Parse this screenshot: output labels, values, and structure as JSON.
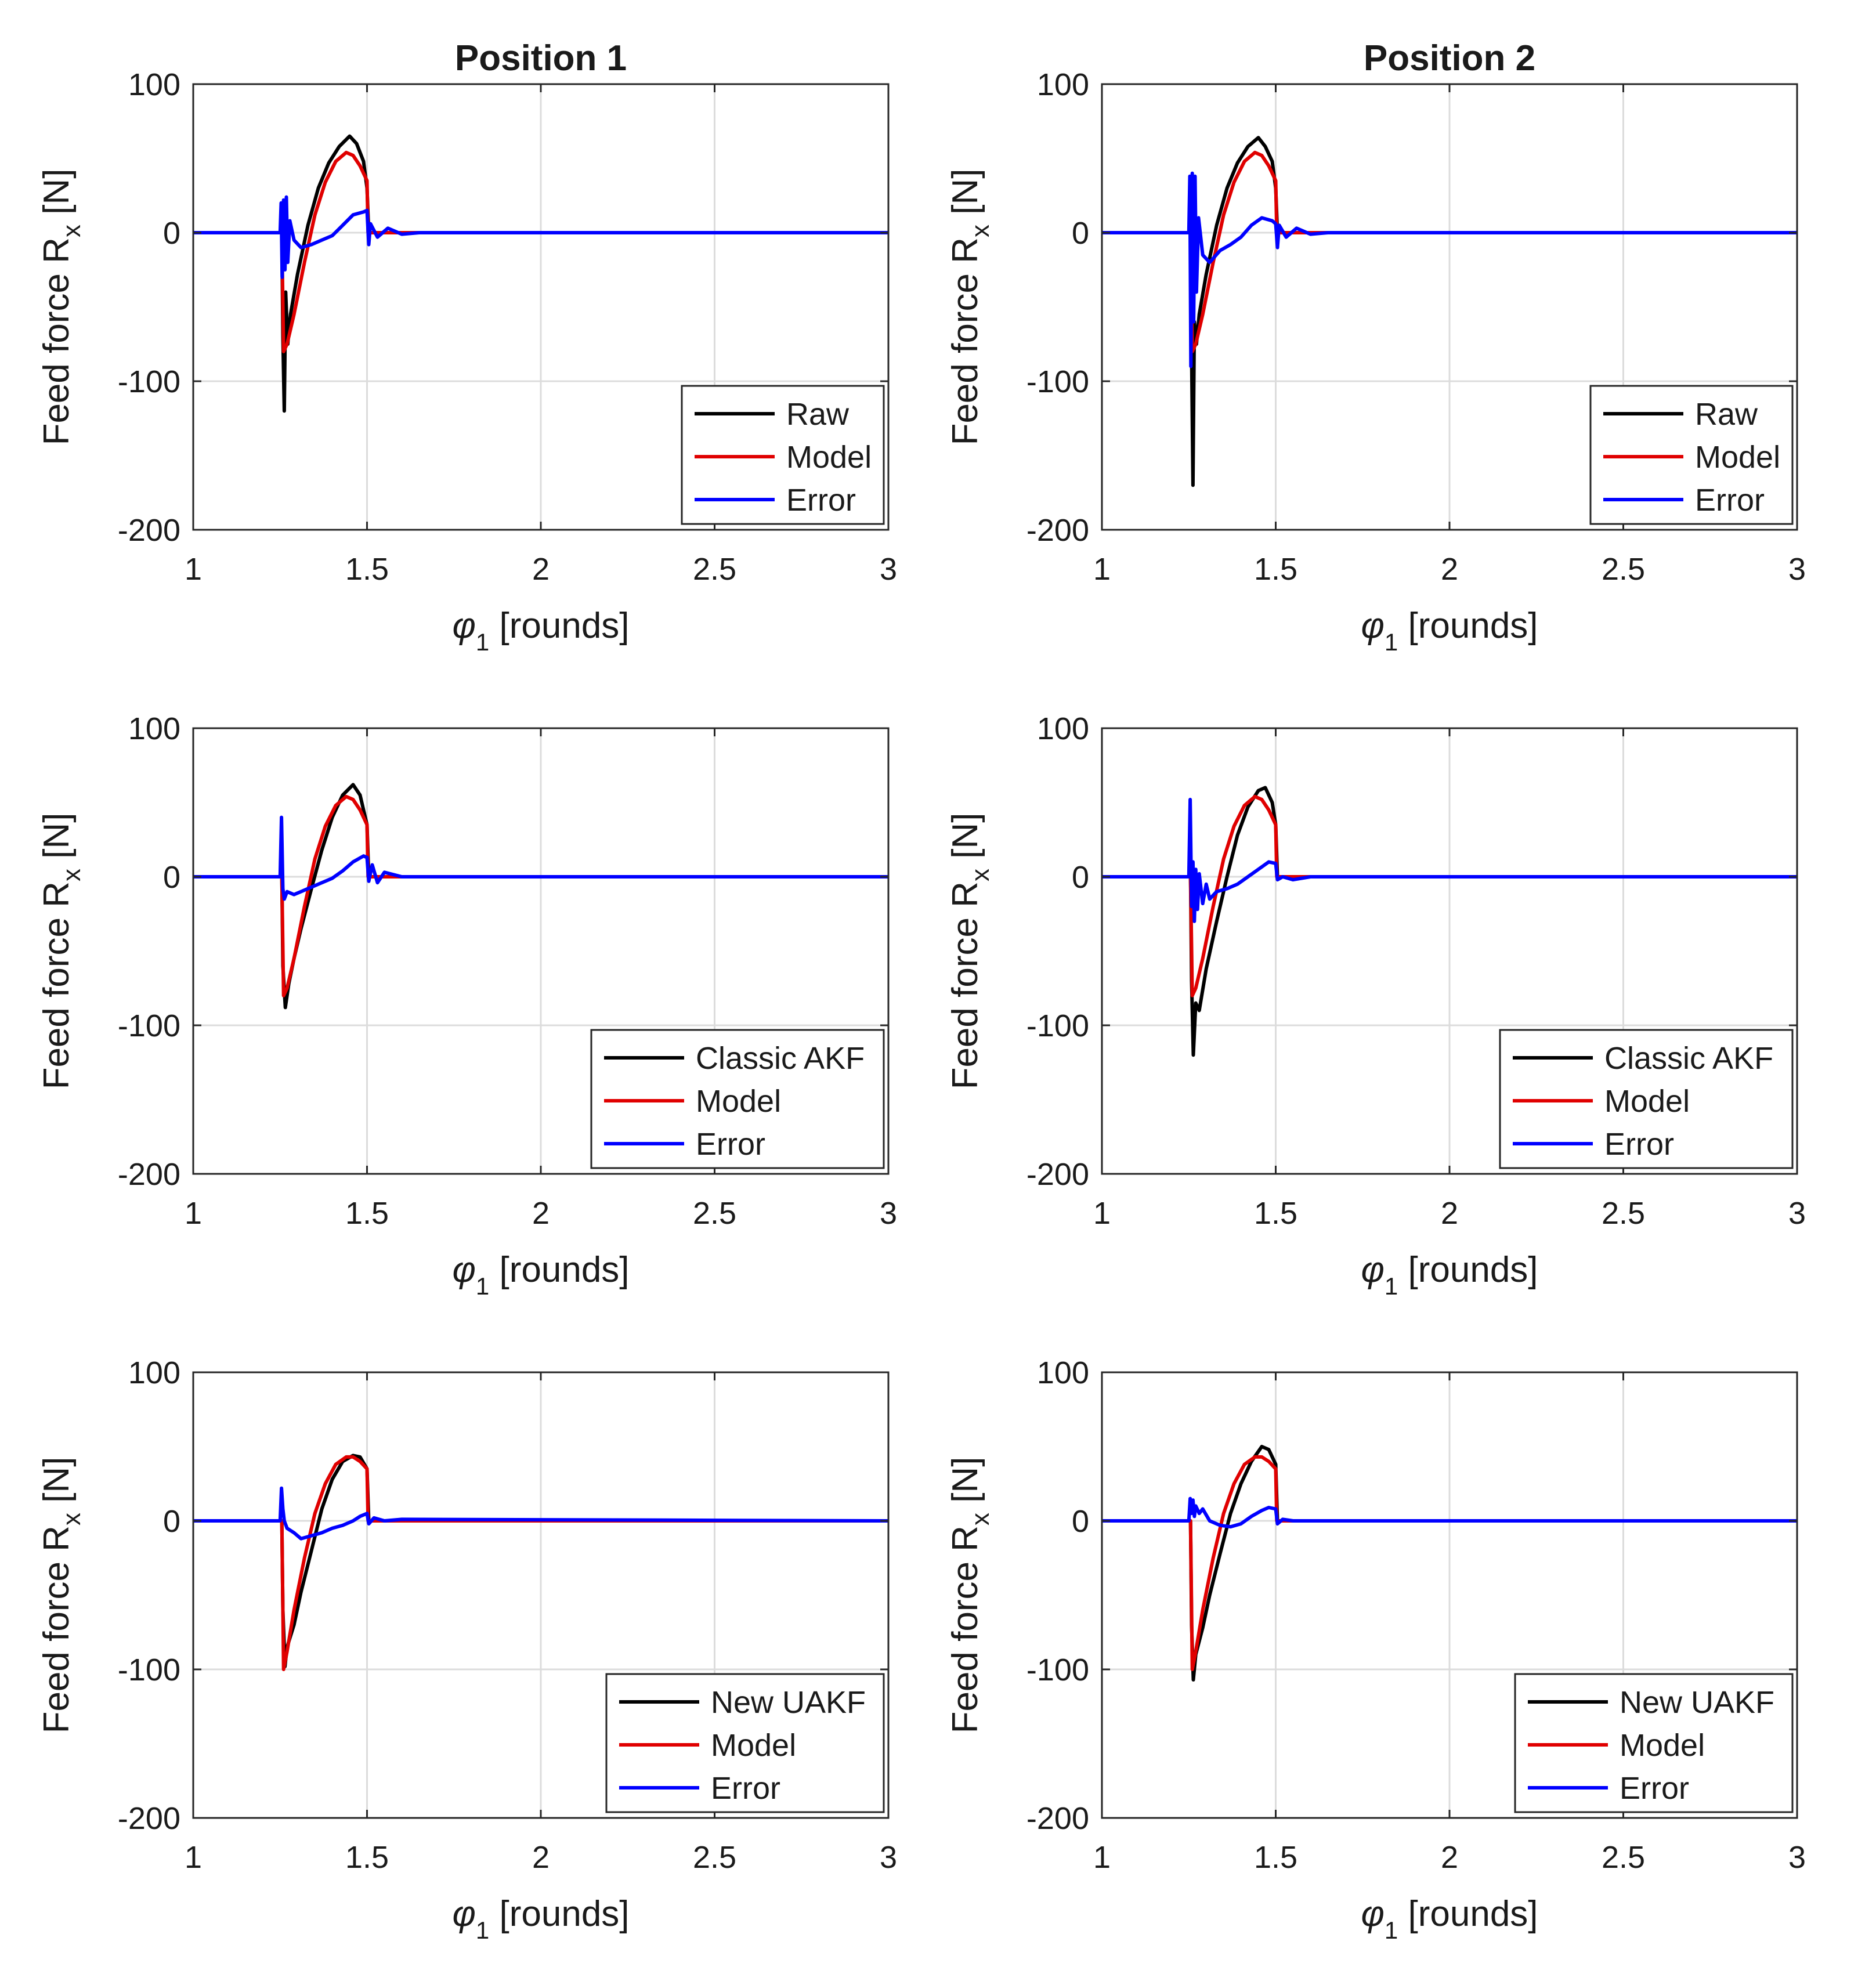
{
  "colors": {
    "black": "#000000",
    "red": "#e00000",
    "blue": "#0000ff",
    "grid": "#dcdcdc"
  },
  "chart_data": [
    {
      "type": "line",
      "column_title": "Position 1",
      "xlabel_symbol": "φ",
      "xlabel_sub": "1",
      "xlabel_rest": " [rounds]",
      "ylabel_main": "Feed force R",
      "ylabel_sub": "x",
      "ylabel_rest": " [N]",
      "xlim": [
        1,
        3
      ],
      "ylim": [
        -200,
        100
      ],
      "xticks": [
        1,
        1.5,
        2,
        2.5,
        3
      ],
      "xtick_labels": [
        "1",
        "1.5",
        "2",
        "2.5",
        "3"
      ],
      "yticks": [
        -200,
        -100,
        0,
        100
      ],
      "ytick_labels": [
        "-200",
        "-100",
        "0",
        "100"
      ],
      "grid": true,
      "legend_loc": "lower-right",
      "series": [
        {
          "name": "Raw",
          "color": "black",
          "x": [
            1,
            1.255,
            1.258,
            1.262,
            1.266,
            1.272,
            1.28,
            1.3,
            1.33,
            1.36,
            1.39,
            1.42,
            1.45,
            1.47,
            1.49,
            1.5,
            1.505,
            1.52,
            3
          ],
          "y": [
            0,
            0,
            -70,
            -120,
            -40,
            -75,
            -55,
            -28,
            5,
            30,
            47,
            58,
            65,
            60,
            48,
            30,
            0,
            0,
            0
          ]
        },
        {
          "name": "Model",
          "color": "red",
          "x": [
            1,
            1.255,
            1.26,
            1.27,
            1.29,
            1.32,
            1.35,
            1.38,
            1.41,
            1.44,
            1.46,
            1.48,
            1.5,
            1.503,
            3
          ],
          "y": [
            0,
            0,
            -80,
            -75,
            -55,
            -20,
            12,
            34,
            48,
            54,
            52,
            45,
            35,
            0,
            0
          ]
        },
        {
          "name": "Error",
          "color": "blue",
          "x": [
            1,
            1.25,
            1.253,
            1.256,
            1.26,
            1.264,
            1.268,
            1.272,
            1.278,
            1.29,
            1.31,
            1.34,
            1.37,
            1.4,
            1.43,
            1.46,
            1.49,
            1.5,
            1.505,
            1.51,
            1.53,
            1.56,
            1.6,
            1.65,
            3
          ],
          "y": [
            0,
            0,
            20,
            -30,
            22,
            -25,
            24,
            -20,
            8,
            -5,
            -10,
            -8,
            -5,
            -2,
            5,
            12,
            14,
            15,
            -8,
            6,
            -3,
            3,
            -1,
            0,
            0
          ]
        }
      ]
    },
    {
      "type": "line",
      "column_title": "Position 2",
      "xlabel_symbol": "φ",
      "xlabel_sub": "1",
      "xlabel_rest": " [rounds]",
      "ylabel_main": "Feed force R",
      "ylabel_sub": "x",
      "ylabel_rest": " [N]",
      "xlim": [
        1,
        3
      ],
      "ylim": [
        -200,
        100
      ],
      "xticks": [
        1,
        1.5,
        2,
        2.5,
        3
      ],
      "xtick_labels": [
        "1",
        "1.5",
        "2",
        "2.5",
        "3"
      ],
      "yticks": [
        -200,
        -100,
        0,
        100
      ],
      "ytick_labels": [
        "-200",
        "-100",
        "0",
        "100"
      ],
      "grid": true,
      "legend_loc": "lower-right",
      "series": [
        {
          "name": "Raw",
          "color": "black",
          "x": [
            1,
            1.255,
            1.258,
            1.262,
            1.266,
            1.272,
            1.28,
            1.3,
            1.33,
            1.36,
            1.39,
            1.42,
            1.45,
            1.47,
            1.49,
            1.5,
            1.505,
            1.52,
            3
          ],
          "y": [
            0,
            0,
            -80,
            -170,
            -60,
            -75,
            -55,
            -28,
            5,
            30,
            47,
            58,
            64,
            58,
            48,
            30,
            0,
            0,
            0
          ]
        },
        {
          "name": "Model",
          "color": "red",
          "x": [
            1,
            1.255,
            1.26,
            1.27,
            1.29,
            1.32,
            1.35,
            1.38,
            1.41,
            1.44,
            1.46,
            1.48,
            1.5,
            1.503,
            3
          ],
          "y": [
            0,
            0,
            -80,
            -75,
            -55,
            -20,
            12,
            34,
            48,
            54,
            52,
            45,
            35,
            0,
            0
          ]
        },
        {
          "name": "Error",
          "color": "blue",
          "x": [
            1,
            1.25,
            1.253,
            1.256,
            1.26,
            1.264,
            1.268,
            1.272,
            1.278,
            1.29,
            1.31,
            1.34,
            1.37,
            1.4,
            1.43,
            1.46,
            1.49,
            1.5,
            1.505,
            1.51,
            1.53,
            1.56,
            1.6,
            1.65,
            3
          ],
          "y": [
            0,
            0,
            38,
            -90,
            40,
            -60,
            38,
            -40,
            10,
            -15,
            -20,
            -12,
            -8,
            -3,
            5,
            10,
            8,
            6,
            -10,
            5,
            -3,
            3,
            -1,
            0,
            0
          ]
        }
      ]
    },
    {
      "type": "line",
      "xlabel_symbol": "φ",
      "xlabel_sub": "1",
      "xlabel_rest": " [rounds]",
      "ylabel_main": "Feed force R",
      "ylabel_sub": "x",
      "ylabel_rest": " [N]",
      "xlim": [
        1,
        3
      ],
      "ylim": [
        -200,
        100
      ],
      "xticks": [
        1,
        1.5,
        2,
        2.5,
        3
      ],
      "xtick_labels": [
        "1",
        "1.5",
        "2",
        "2.5",
        "3"
      ],
      "yticks": [
        -200,
        -100,
        0,
        100
      ],
      "ytick_labels": [
        "-200",
        "-100",
        "0",
        "100"
      ],
      "grid": true,
      "legend_loc": "lower-right",
      "series": [
        {
          "name": "Classic AKF",
          "color": "black",
          "x": [
            1,
            1.255,
            1.258,
            1.265,
            1.275,
            1.29,
            1.31,
            1.34,
            1.37,
            1.4,
            1.43,
            1.46,
            1.48,
            1.5,
            1.505,
            3
          ],
          "y": [
            0,
            0,
            -60,
            -88,
            -72,
            -55,
            -35,
            -8,
            18,
            40,
            55,
            62,
            55,
            35,
            0,
            0
          ]
        },
        {
          "name": "Model",
          "color": "red",
          "x": [
            1,
            1.255,
            1.26,
            1.27,
            1.29,
            1.32,
            1.35,
            1.38,
            1.41,
            1.44,
            1.46,
            1.48,
            1.5,
            1.503,
            3
          ],
          "y": [
            0,
            0,
            -80,
            -75,
            -55,
            -20,
            12,
            34,
            48,
            54,
            52,
            45,
            35,
            0,
            0
          ]
        },
        {
          "name": "Error",
          "color": "blue",
          "x": [
            1,
            1.25,
            1.254,
            1.258,
            1.262,
            1.27,
            1.29,
            1.31,
            1.34,
            1.37,
            1.4,
            1.43,
            1.46,
            1.49,
            1.5,
            1.505,
            1.515,
            1.53,
            1.55,
            1.6,
            3
          ],
          "y": [
            0,
            0,
            40,
            -8,
            -15,
            -10,
            -12,
            -10,
            -7,
            -4,
            -1,
            4,
            10,
            14,
            13,
            -3,
            8,
            -4,
            3,
            0,
            0
          ]
        }
      ]
    },
    {
      "type": "line",
      "xlabel_symbol": "φ",
      "xlabel_sub": "1",
      "xlabel_rest": " [rounds]",
      "ylabel_main": "Feed force R",
      "ylabel_sub": "x",
      "ylabel_rest": " [N]",
      "xlim": [
        1,
        3
      ],
      "ylim": [
        -200,
        100
      ],
      "xticks": [
        1,
        1.5,
        2,
        2.5,
        3
      ],
      "xtick_labels": [
        "1",
        "1.5",
        "2",
        "2.5",
        "3"
      ],
      "yticks": [
        -200,
        -100,
        0,
        100
      ],
      "ytick_labels": [
        "-200",
        "-100",
        "0",
        "100"
      ],
      "grid": true,
      "legend_loc": "lower-right",
      "series": [
        {
          "name": "Classic AKF",
          "color": "black",
          "x": [
            1,
            1.255,
            1.258,
            1.263,
            1.27,
            1.28,
            1.3,
            1.33,
            1.36,
            1.39,
            1.42,
            1.45,
            1.47,
            1.49,
            1.5,
            1.505,
            3
          ],
          "y": [
            0,
            0,
            -70,
            -120,
            -85,
            -90,
            -62,
            -30,
            0,
            28,
            47,
            58,
            60,
            50,
            35,
            0,
            0
          ]
        },
        {
          "name": "Model",
          "color": "red",
          "x": [
            1,
            1.255,
            1.26,
            1.27,
            1.29,
            1.32,
            1.35,
            1.38,
            1.41,
            1.44,
            1.46,
            1.48,
            1.5,
            1.503,
            3
          ],
          "y": [
            0,
            0,
            -80,
            -75,
            -55,
            -20,
            12,
            34,
            48,
            54,
            52,
            45,
            35,
            0,
            0
          ]
        },
        {
          "name": "Error",
          "color": "blue",
          "x": [
            1,
            1.25,
            1.254,
            1.258,
            1.262,
            1.266,
            1.27,
            1.275,
            1.28,
            1.29,
            1.3,
            1.31,
            1.33,
            1.36,
            1.39,
            1.42,
            1.45,
            1.48,
            1.5,
            1.505,
            1.52,
            1.55,
            1.6,
            3
          ],
          "y": [
            0,
            0,
            52,
            -20,
            10,
            -30,
            5,
            -22,
            2,
            -18,
            -5,
            -15,
            -10,
            -8,
            -5,
            0,
            5,
            10,
            9,
            -2,
            0,
            -2,
            0,
            0
          ]
        }
      ]
    },
    {
      "type": "line",
      "xlabel_symbol": "φ",
      "xlabel_sub": "1",
      "xlabel_rest": " [rounds]",
      "ylabel_main": "Feed force R",
      "ylabel_sub": "x",
      "ylabel_rest": " [N]",
      "xlim": [
        1,
        3
      ],
      "ylim": [
        -200,
        100
      ],
      "xticks": [
        1,
        1.5,
        2,
        2.5,
        3
      ],
      "xtick_labels": [
        "1",
        "1.5",
        "2",
        "2.5",
        "3"
      ],
      "yticks": [
        -200,
        -100,
        0,
        100
      ],
      "ytick_labels": [
        "-200",
        "-100",
        "0",
        "100"
      ],
      "grid": true,
      "legend_loc": "lower-right",
      "series": [
        {
          "name": "New UAKF",
          "color": "black",
          "x": [
            1,
            1.255,
            1.258,
            1.264,
            1.27,
            1.29,
            1.31,
            1.34,
            1.37,
            1.4,
            1.43,
            1.46,
            1.48,
            1.5,
            1.505,
            3
          ],
          "y": [
            0,
            0,
            -60,
            -98,
            -85,
            -70,
            -48,
            -20,
            8,
            28,
            40,
            44,
            43,
            35,
            0,
            0
          ]
        },
        {
          "name": "Model",
          "color": "red",
          "x": [
            1,
            1.255,
            1.26,
            1.27,
            1.29,
            1.32,
            1.35,
            1.38,
            1.41,
            1.44,
            1.46,
            1.48,
            1.5,
            1.503,
            3
          ],
          "y": [
            0,
            0,
            -100,
            -88,
            -60,
            -25,
            5,
            25,
            38,
            43,
            43,
            40,
            35,
            0,
            0
          ]
        },
        {
          "name": "Error",
          "color": "blue",
          "x": [
            1,
            1.25,
            1.254,
            1.258,
            1.262,
            1.27,
            1.29,
            1.31,
            1.34,
            1.37,
            1.4,
            1.43,
            1.46,
            1.48,
            1.5,
            1.505,
            1.52,
            1.55,
            1.6,
            3
          ],
          "y": [
            0,
            0,
            22,
            8,
            0,
            -5,
            -8,
            -12,
            -10,
            -8,
            -5,
            -3,
            0,
            3,
            5,
            -2,
            2,
            0,
            1,
            0
          ]
        }
      ]
    },
    {
      "type": "line",
      "xlabel_symbol": "φ",
      "xlabel_sub": "1",
      "xlabel_rest": " [rounds]",
      "ylabel_main": "Feed force R",
      "ylabel_sub": "x",
      "ylabel_rest": " [N]",
      "xlim": [
        1,
        3
      ],
      "ylim": [
        -200,
        100
      ],
      "xticks": [
        1,
        1.5,
        2,
        2.5,
        3
      ],
      "xtick_labels": [
        "1",
        "1.5",
        "2",
        "2.5",
        "3"
      ],
      "yticks": [
        -200,
        -100,
        0,
        100
      ],
      "ytick_labels": [
        "-200",
        "-100",
        "0",
        "100"
      ],
      "grid": true,
      "legend_loc": "lower-right",
      "series": [
        {
          "name": "New UAKF",
          "color": "black",
          "x": [
            1,
            1.255,
            1.258,
            1.263,
            1.27,
            1.29,
            1.31,
            1.34,
            1.37,
            1.4,
            1.43,
            1.46,
            1.48,
            1.5,
            1.505,
            3
          ],
          "y": [
            0,
            0,
            -70,
            -107,
            -90,
            -72,
            -50,
            -22,
            5,
            25,
            40,
            50,
            48,
            38,
            0,
            0
          ]
        },
        {
          "name": "Model",
          "color": "red",
          "x": [
            1,
            1.255,
            1.26,
            1.27,
            1.29,
            1.32,
            1.35,
            1.38,
            1.41,
            1.44,
            1.46,
            1.48,
            1.5,
            1.503,
            3
          ],
          "y": [
            0,
            0,
            -100,
            -88,
            -60,
            -25,
            5,
            25,
            38,
            43,
            43,
            40,
            35,
            0,
            0
          ]
        },
        {
          "name": "Error",
          "color": "blue",
          "x": [
            1,
            1.25,
            1.254,
            1.258,
            1.262,
            1.266,
            1.27,
            1.28,
            1.29,
            1.31,
            1.34,
            1.37,
            1.4,
            1.43,
            1.46,
            1.48,
            1.5,
            1.505,
            1.52,
            1.55,
            1.6,
            3
          ],
          "y": [
            0,
            0,
            15,
            5,
            14,
            3,
            10,
            5,
            8,
            0,
            -3,
            -4,
            -2,
            3,
            7,
            9,
            8,
            -2,
            1,
            0,
            0,
            0
          ]
        }
      ]
    }
  ]
}
